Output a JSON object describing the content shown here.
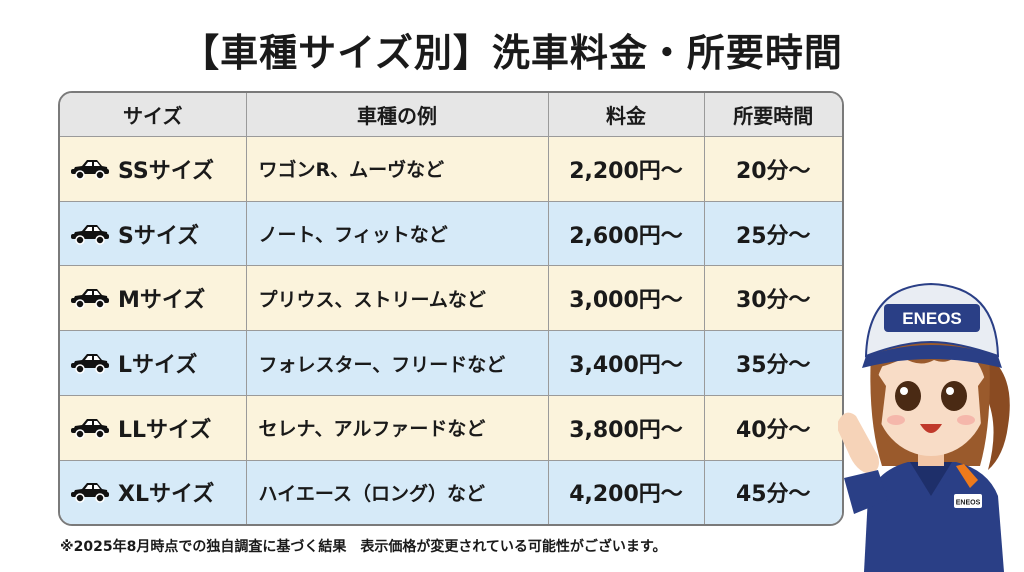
{
  "title": "【車種サイズ別】洗車料金・所要時間",
  "table": {
    "headers": {
      "size": "サイズ",
      "example": "車種の例",
      "price": "料金",
      "time": "所要時間"
    },
    "rows": [
      {
        "size": "SSサイズ",
        "example": "ワゴンR、ムーヴなど",
        "price": "2,200円〜",
        "time": "20分〜"
      },
      {
        "size": "Sサイズ",
        "example": "ノート、フィットなど",
        "price": "2,600円〜",
        "time": "25分〜"
      },
      {
        "size": "Mサイズ",
        "example": "プリウス、ストリームなど",
        "price": "3,000円〜",
        "time": "30分〜"
      },
      {
        "size": "Lサイズ",
        "example": "フォレスター、フリードなど",
        "price": "3,400円〜",
        "time": "35分〜"
      },
      {
        "size": "LLサイズ",
        "example": "セレナ、アルファードなど",
        "price": "3,800円〜",
        "time": "40分〜"
      },
      {
        "size": "XLサイズ",
        "example": "ハイエース（ロング）など",
        "price": "4,200円〜",
        "time": "45分〜"
      }
    ]
  },
  "note": "※2025年8月時点での独自調査に基づく結果　表示価格が変更されている可能性がございます。",
  "mascot": {
    "cap_text": "ENEOS",
    "badge_text": "ENEOS"
  },
  "colors": {
    "row_cream": "#fbf3dc",
    "row_blue": "#d6eaf8",
    "header_gray": "#e6e6e6",
    "uniform_navy": "#2a3f86",
    "brand_orange": "#ee7a1b"
  },
  "icons": {
    "row_icon": "car-icon"
  }
}
